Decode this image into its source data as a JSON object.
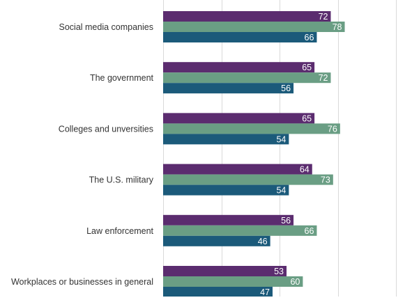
{
  "chart_data": {
    "type": "bar",
    "orientation": "horizontal",
    "categories": [
      "Social media companies",
      "The government",
      "Colleges and unversities",
      "The U.S. military",
      "Law enforcement",
      "Workplaces or businesses in general"
    ],
    "series": [
      {
        "color": "#5b2c6f",
        "values": [
          72,
          65,
          65,
          64,
          56,
          53
        ]
      },
      {
        "color": "#6a9e84",
        "values": [
          78,
          72,
          76,
          73,
          66,
          60
        ]
      },
      {
        "color": "#1b5a7a",
        "values": [
          66,
          56,
          54,
          54,
          46,
          47
        ]
      }
    ],
    "xlim": [
      0,
      100
    ],
    "grid": true,
    "legend": false,
    "data_labels": true,
    "label_color": "#ffffff",
    "category_label_color": "#333333",
    "grid_color": "#d9d9d9"
  }
}
